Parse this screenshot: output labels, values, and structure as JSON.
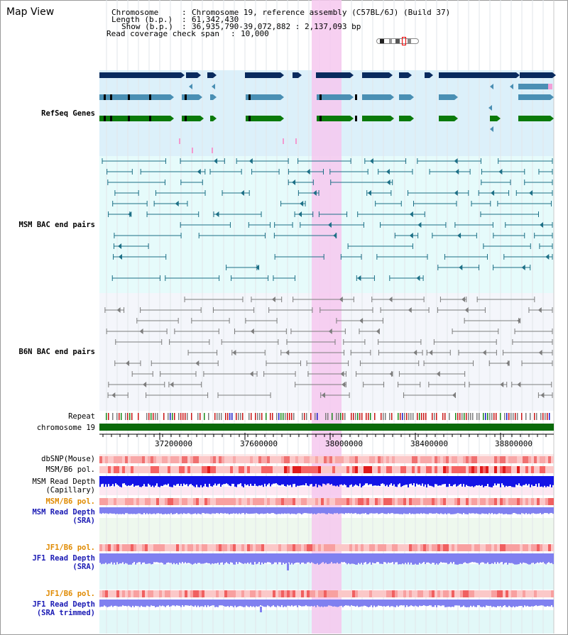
{
  "title": "Map View",
  "info": {
    "chromosome_key": "Chromosome",
    "chromosome_val": "Chromosome 19, reference assembly (C57BL/6J) (Build 37)",
    "length_key": "Length (b.p.)",
    "length_val": "61,342,430",
    "show_key": "Show (b.p.)",
    "show_val": "36,935,790-39,072,882 : 2,137,093 bp",
    "span_key": "Read coverage check span",
    "span_val": "10,000"
  },
  "labels": {
    "refseq": "RefSeq Genes",
    "msm_bac": "MSM BAC end pairs",
    "b6n_bac": "B6N BAC end pairs",
    "repeat": "Repeat",
    "chromosome": "chromosome 19",
    "dbsnp": "dbSNP(Mouse)",
    "msm_b6_pol": "MSM/B6 pol.",
    "msm_depth_cap_1": "MSM Read Depth",
    "msm_depth_cap_2": "(Capillary)",
    "msm_b6_pol_sra": "MSM/B6 pol.",
    "msm_depth_sra_1": "MSM Read Depth",
    "msm_depth_sra_2": "(SRA)",
    "jf1_b6_pol": "JF1/B6 pol.",
    "jf1_depth_sra_1": "JF1 Read Depth",
    "jf1_depth_sra_2": "(SRA)",
    "jf1_b6_pol_trim": "JF1/B6 pol.",
    "jf1_depth_trim_1": "JF1 Read Depth",
    "jf1_depth_trim_2": "(SRA trimmed)"
  },
  "axis": {
    "ticks": [
      "37200000",
      "37600000",
      "38000000",
      "38400000",
      "38800000"
    ]
  },
  "colors": {
    "refseq_band": "#dcf0fa",
    "msm_band": "#e6fbfb",
    "b6n_band": "#f4f6fb",
    "highlight": "#f6c8ee",
    "gene_navy": "#0a2b5e",
    "gene_steel": "#4a8fb4",
    "gene_green": "#0a7a0a",
    "msm_bac": "#1c6f86",
    "b6n_bac": "#7d7d7d",
    "chromosome": "#0a6a0a",
    "depth_blue": "#1414e6",
    "depth_lavender": "#8080f0",
    "label_blue": "#1a1ab4",
    "label_teal": "#1a6f86",
    "label_orange": "#e08a00"
  }
}
